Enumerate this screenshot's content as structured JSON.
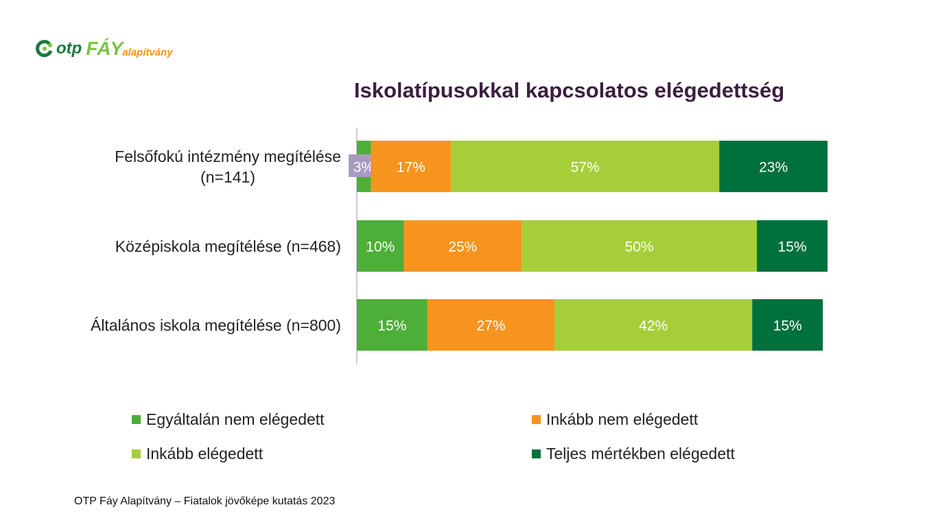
{
  "logo": {
    "otp": "otp",
    "fay": "FÁY",
    "alap": "alapítvány"
  },
  "footer": "OTP Fáy Alapítvány – Fiatalok jövőképe kutatás 2023",
  "chart_data": {
    "type": "bar",
    "orientation": "horizontal",
    "stacked": true,
    "title": "Iskolatípusokkal kapcsolatos elégedettség",
    "categories": [
      "Felsőfokú intézmény megítélése (n=141)",
      "Középiskola megítélése (n=468)",
      "Általános iskola megítélése (n=800)"
    ],
    "category_lines": [
      [
        "Felsőfokú intézmény megítélése",
        "(n=141)"
      ],
      [
        "Középiskola megítélése (n=468)"
      ],
      [
        "Általános iskola megítélése (n=800)"
      ]
    ],
    "series": [
      {
        "name": "Egyáltalán nem elégedett",
        "color": "#4dae38",
        "values": [
          3,
          10,
          15
        ]
      },
      {
        "name": "Inkább nem elégedett",
        "color": "#f7941d",
        "values": [
          17,
          25,
          27
        ]
      },
      {
        "name": "Inkább elégedett",
        "color": "#a6ce39",
        "values": [
          57,
          50,
          42
        ]
      },
      {
        "name": "Teljes mértékben elégedett",
        "color": "#00703c",
        "values": [
          23,
          15,
          15
        ]
      }
    ],
    "unit": "%",
    "xlim": [
      0,
      100
    ],
    "legend": "bottom"
  }
}
